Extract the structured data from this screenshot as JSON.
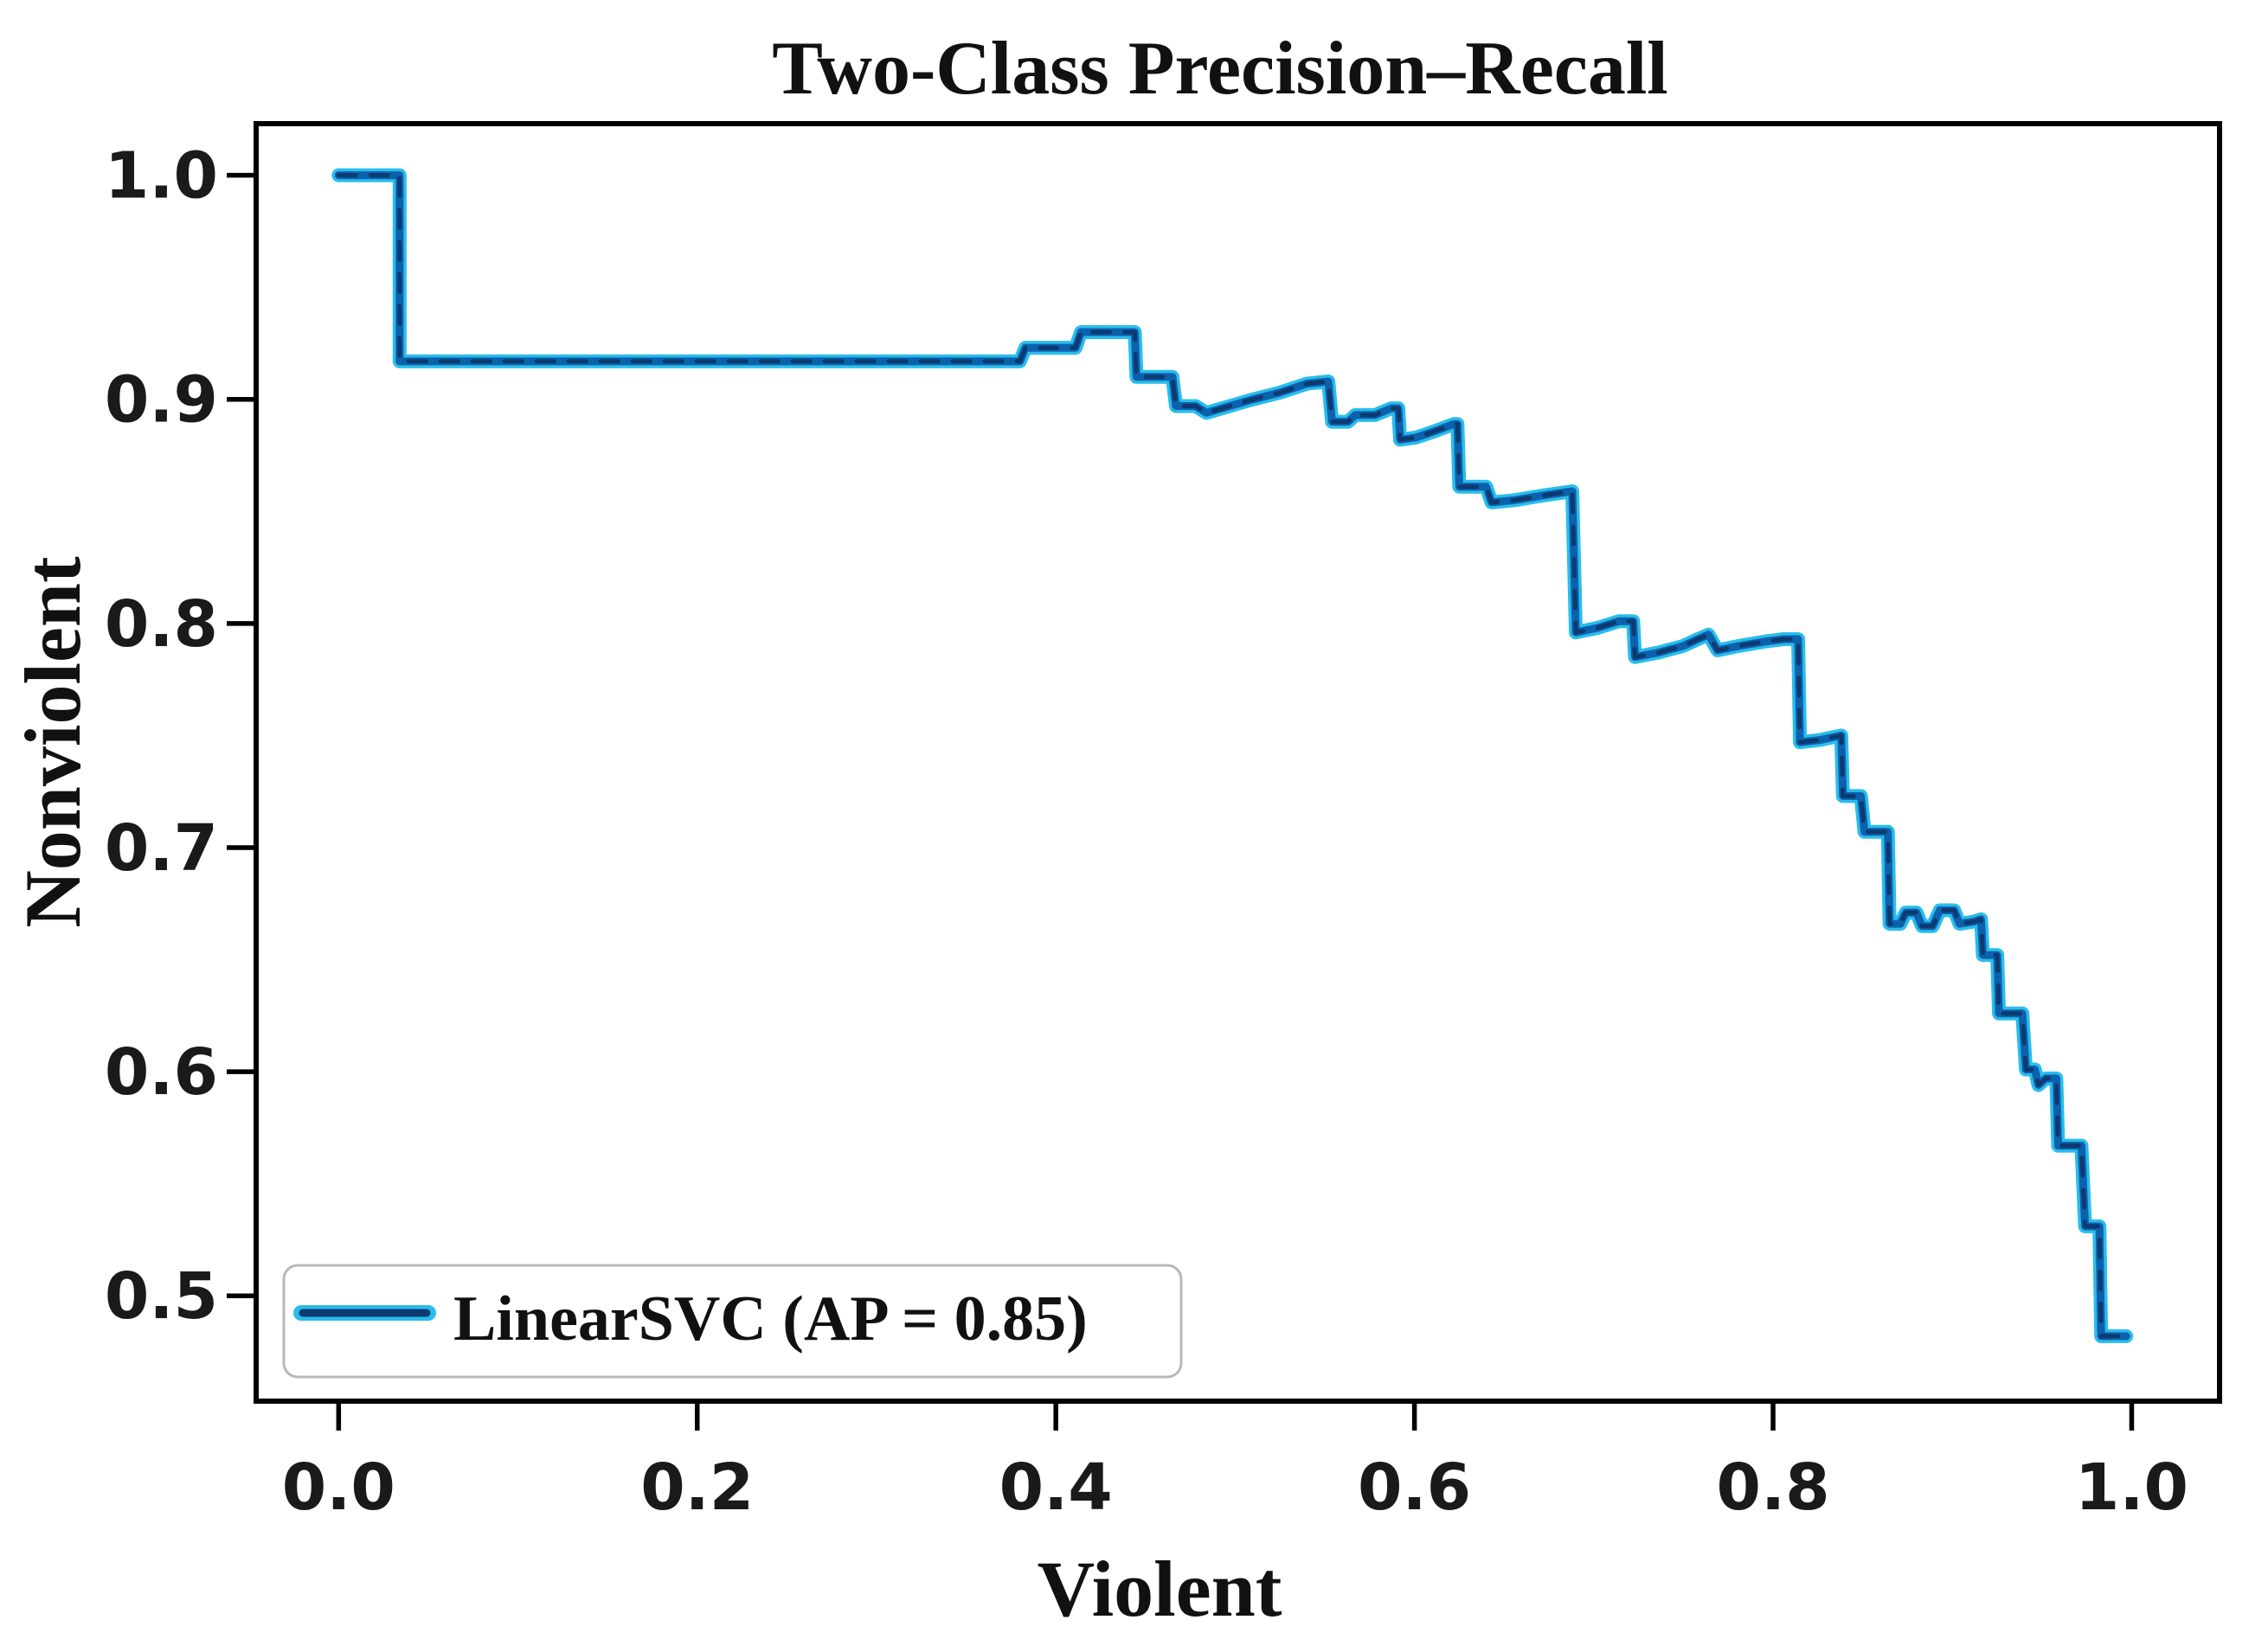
{
  "page": {
    "background": "#ffffff"
  },
  "chart_data": {
    "type": "line",
    "subtype": "precision-recall step curve",
    "title": "Two-Class Precision–Recall",
    "xlabel": "Violent",
    "ylabel": "Nonviolent",
    "xlim": [
      -0.046,
      1.049
    ],
    "ylim": [
      0.453,
      1.023
    ],
    "grid": false,
    "xticks": {
      "values": [
        0.0,
        0.2,
        0.4,
        0.6,
        0.8,
        1.0
      ],
      "labels": [
        "0.0",
        "0.2",
        "0.4",
        "0.6",
        "0.8",
        "1.0"
      ]
    },
    "yticks": {
      "values": [
        0.5,
        0.6,
        0.7,
        0.8,
        0.9,
        1.0
      ],
      "labels": [
        "0.5",
        "0.6",
        "0.7",
        "0.8",
        "0.9",
        "1.0"
      ]
    },
    "legend": {
      "position": "lower left",
      "label": "LinearSVC (AP = 0.85)"
    },
    "colors": {
      "curve_halo": "#29bdec",
      "curve_core": "#0c61ad",
      "curve_dash": "#0d3a70",
      "frame": "#000000",
      "legend_border": "#b8b8b8",
      "background": "#ffffff"
    },
    "series": [
      {
        "name": "LinearSVC",
        "ap": 0.85,
        "x_is": "recall (Violent)",
        "y_is": "precision (Nonviolent)",
        "points": [
          [
            0.0,
            1.0
          ],
          [
            0.034,
            1.0
          ],
          [
            0.034,
            0.917
          ],
          [
            0.38,
            0.917
          ],
          [
            0.383,
            0.923
          ],
          [
            0.411,
            0.923
          ],
          [
            0.414,
            0.93
          ],
          [
            0.444,
            0.93
          ],
          [
            0.445,
            0.91
          ],
          [
            0.465,
            0.91
          ],
          [
            0.467,
            0.897
          ],
          [
            0.478,
            0.897
          ],
          [
            0.484,
            0.894
          ],
          [
            0.497,
            0.897
          ],
          [
            0.51,
            0.9
          ],
          [
            0.525,
            0.903
          ],
          [
            0.54,
            0.907
          ],
          [
            0.552,
            0.908
          ],
          [
            0.554,
            0.89
          ],
          [
            0.563,
            0.89
          ],
          [
            0.567,
            0.893
          ],
          [
            0.578,
            0.893
          ],
          [
            0.587,
            0.896
          ],
          [
            0.591,
            0.896
          ],
          [
            0.592,
            0.882
          ],
          [
            0.601,
            0.883
          ],
          [
            0.612,
            0.886
          ],
          [
            0.622,
            0.889
          ],
          [
            0.624,
            0.889
          ],
          [
            0.625,
            0.861
          ],
          [
            0.64,
            0.861
          ],
          [
            0.643,
            0.854
          ],
          [
            0.656,
            0.855
          ],
          [
            0.671,
            0.857
          ],
          [
            0.688,
            0.859
          ],
          [
            0.69,
            0.796
          ],
          [
            0.702,
            0.798
          ],
          [
            0.714,
            0.801
          ],
          [
            0.722,
            0.801
          ],
          [
            0.723,
            0.785
          ],
          [
            0.736,
            0.787
          ],
          [
            0.75,
            0.79
          ],
          [
            0.758,
            0.793
          ],
          [
            0.764,
            0.795
          ],
          [
            0.769,
            0.788
          ],
          [
            0.781,
            0.79
          ],
          [
            0.796,
            0.792
          ],
          [
            0.806,
            0.793
          ],
          [
            0.814,
            0.793
          ],
          [
            0.815,
            0.747
          ],
          [
            0.826,
            0.748
          ],
          [
            0.838,
            0.75
          ],
          [
            0.839,
            0.723
          ],
          [
            0.849,
            0.723
          ],
          [
            0.851,
            0.707
          ],
          [
            0.864,
            0.707
          ],
          [
            0.865,
            0.666
          ],
          [
            0.871,
            0.666
          ],
          [
            0.874,
            0.671
          ],
          [
            0.88,
            0.671
          ],
          [
            0.883,
            0.665
          ],
          [
            0.889,
            0.665
          ],
          [
            0.893,
            0.672
          ],
          [
            0.901,
            0.672
          ],
          [
            0.904,
            0.666
          ],
          [
            0.912,
            0.667
          ],
          [
            0.916,
            0.668
          ],
          [
            0.917,
            0.652
          ],
          [
            0.925,
            0.652
          ],
          [
            0.926,
            0.626
          ],
          [
            0.939,
            0.626
          ],
          [
            0.941,
            0.601
          ],
          [
            0.946,
            0.601
          ],
          [
            0.948,
            0.594
          ],
          [
            0.952,
            0.597
          ],
          [
            0.958,
            0.597
          ],
          [
            0.959,
            0.567
          ],
          [
            0.972,
            0.567
          ],
          [
            0.974,
            0.531
          ],
          [
            0.982,
            0.531
          ],
          [
            0.983,
            0.482
          ],
          [
            0.997,
            0.482
          ]
        ]
      }
    ]
  }
}
